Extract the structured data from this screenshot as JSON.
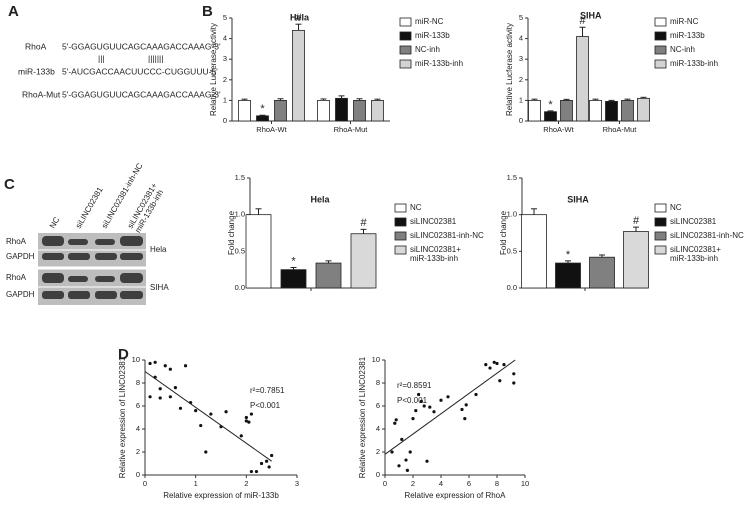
{
  "panels": [
    "A",
    "B",
    "C",
    "D"
  ],
  "sequences": {
    "rows": [
      {
        "label": "RhoA",
        "seq": "5'-GGAGUGUUCAGCAAAGACCAAAG-3'"
      },
      {
        "label": "miR-133b",
        "seq": "5'-AUCGACCAACUUCCC-CUGGUUU-5'"
      },
      {
        "label": "RhoA-Mut",
        "seq": "5'-GGAGUGUUCAGCAAAGACCAAAG-3'"
      }
    ],
    "pairing": [
      "|||",
      "|||||||"
    ]
  },
  "blot": {
    "lanes": [
      "NC",
      "siLINC02381",
      "siLINC02381-inh-NC",
      "siLINC02381+\nmiR-133b-inh"
    ],
    "rows": [
      "RhoA",
      "GAPDH",
      "RhoA",
      "GAPDH"
    ],
    "cell_lines": [
      "Hela",
      "SIHA"
    ]
  },
  "chart_data": [
    {
      "type": "bar",
      "title": "Hela",
      "y_label": "Relative Lucferase activity",
      "categories": [
        "RhoA-Wt",
        "RhoA-Mut"
      ],
      "ylim": [
        0,
        5
      ],
      "yticks": [
        0,
        1,
        2,
        3,
        4,
        5
      ],
      "series": [
        {
          "name": "miR-NC",
          "color": "#ffffff",
          "values": [
            1.0,
            1.0
          ],
          "errors": [
            0.06,
            0.07
          ]
        },
        {
          "name": "miR-133b",
          "color": "#111111",
          "values": [
            0.25,
            1.1
          ],
          "errors": [
            0.03,
            0.12
          ]
        },
        {
          "name": "NC-inh",
          "color": "#808080",
          "values": [
            1.0,
            1.0
          ],
          "errors": [
            0.08,
            0.08
          ]
        },
        {
          "name": "miR-133b-inh",
          "color": "#d3d3d3",
          "values": [
            4.4,
            1.0
          ],
          "errors": [
            0.3,
            0.06
          ]
        }
      ],
      "annotations": [
        {
          "text": "*",
          "series": "miR-133b",
          "category": "RhoA-Wt"
        },
        {
          "text": "#",
          "series": "miR-133b-inh",
          "category": "RhoA-Wt"
        }
      ]
    },
    {
      "type": "bar",
      "title": "SIHA",
      "y_label": "Relative Lucferase activity",
      "categories": [
        "RhoA-Wt",
        "RhoA-Mut"
      ],
      "ylim": [
        0,
        5
      ],
      "yticks": [
        0,
        1,
        2,
        3,
        4,
        5
      ],
      "series": [
        {
          "name": "miR-NC",
          "color": "#ffffff",
          "values": [
            1.0,
            1.0
          ],
          "errors": [
            0.06,
            0.06
          ]
        },
        {
          "name": "miR-133b",
          "color": "#111111",
          "values": [
            0.45,
            0.95
          ],
          "errors": [
            0.04,
            0.05
          ]
        },
        {
          "name": "NC-inh",
          "color": "#808080",
          "values": [
            1.0,
            1.0
          ],
          "errors": [
            0.05,
            0.06
          ]
        },
        {
          "name": "miR-133b-inh",
          "color": "#d3d3d3",
          "values": [
            4.1,
            1.1
          ],
          "errors": [
            0.45,
            0.05
          ]
        }
      ],
      "annotations": [
        {
          "text": "*",
          "series": "miR-133b",
          "category": "RhoA-Wt"
        },
        {
          "text": "#",
          "series": "miR-133b-inh",
          "category": "RhoA-Wt"
        }
      ]
    },
    {
      "type": "bar",
      "title": "Hela",
      "y_label": "Fold change",
      "categories": [
        null
      ],
      "ylim": [
        0,
        1.5
      ],
      "yticks": [
        {
          "value": 0,
          "label": "0.0"
        },
        {
          "value": 0.5,
          "label": "0.5"
        },
        {
          "value": 1,
          "label": "1.0"
        },
        {
          "value": 1.5,
          "label": "1.5"
        }
      ],
      "series": [
        {
          "name": "NC",
          "color": "#ffffff",
          "values": [
            1.0
          ],
          "errors": [
            0.08
          ]
        },
        {
          "name": "siLINC02381",
          "color": "#111111",
          "values": [
            0.25
          ],
          "errors": [
            0.03
          ]
        },
        {
          "name": "siLINC02381-inh-NC",
          "color": "#808080",
          "values": [
            0.34
          ],
          "errors": [
            0.03
          ]
        },
        {
          "name": "siLINC02381+\nmiR-133b-inh",
          "color": "#d9d9d9",
          "values": [
            0.74
          ],
          "errors": [
            0.06
          ]
        }
      ],
      "annotations": [
        {
          "text": "*",
          "series": "siLINC02381",
          "category": null
        },
        {
          "text": "#",
          "series": "siLINC02381+\nmiR-133b-inh",
          "category": null
        }
      ]
    },
    {
      "type": "bar",
      "title": "SIHA",
      "y_label": "Fold change",
      "categories": [
        null
      ],
      "ylim": [
        0,
        1.5
      ],
      "yticks": [
        {
          "value": 0,
          "label": "0.0"
        },
        {
          "value": 0.5,
          "label": "0.5"
        },
        {
          "value": 1,
          "label": "1.0"
        },
        {
          "value": 1.5,
          "label": "1.5"
        }
      ],
      "series": [
        {
          "name": "NC",
          "color": "#ffffff",
          "values": [
            1.0
          ],
          "errors": [
            0.08
          ]
        },
        {
          "name": "siLINC02381",
          "color": "#111111",
          "values": [
            0.34
          ],
          "errors": [
            0.03
          ]
        },
        {
          "name": "siLINC02381-inh-NC",
          "color": "#808080",
          "values": [
            0.42
          ],
          "errors": [
            0.03
          ]
        },
        {
          "name": "siLINC02381+\nmiR-133b-inh",
          "color": "#d9d9d9",
          "values": [
            0.77
          ],
          "errors": [
            0.06
          ]
        }
      ],
      "annotations": [
        {
          "text": "*",
          "series": "siLINC02381",
          "category": null
        },
        {
          "text": "#",
          "series": "siLINC02381+\nmiR-133b-inh",
          "category": null
        }
      ]
    },
    {
      "type": "scatter",
      "x_label": "Relative expression of miR-133b",
      "y_label": "Relative expression of LINC02381",
      "xlim": [
        0,
        3
      ],
      "xticks": [
        0,
        1,
        2,
        3
      ],
      "ylim": [
        0,
        10
      ],
      "yticks": [
        0,
        2,
        4,
        6,
        8,
        10
      ],
      "color": "#111111",
      "x": [
        0.1,
        0.2,
        0.1,
        0.3,
        0.3,
        0.4,
        0.5,
        0.5,
        0.6,
        0.7,
        0.8,
        0.9,
        1.0,
        1.1,
        1.2,
        1.3,
        1.5,
        1.9,
        2.0,
        2.0,
        2.1,
        2.1,
        2.2,
        2.3,
        2.4,
        2.5,
        2.45,
        0.2,
        1.6,
        2.05
      ],
      "values": [
        9.7,
        9.8,
        6.8,
        6.7,
        7.5,
        9.5,
        6.8,
        9.2,
        7.6,
        5.8,
        9.5,
        6.3,
        5.6,
        4.3,
        2.0,
        5.3,
        4.2,
        3.4,
        4.7,
        5.0,
        5.3,
        0.3,
        0.3,
        1.0,
        1.2,
        1.7,
        0.7,
        8.5,
        5.5,
        4.6
      ],
      "fit": {
        "x": [
          0,
          2.5
        ],
        "values": [
          9,
          1.2
        ]
      },
      "annotations": [
        "r²=0.7851",
        "P<0.001"
      ]
    },
    {
      "type": "scatter",
      "x_label": "Relative expression of RhoA",
      "y_label": "Relative expression of LINC02381",
      "xlim": [
        0,
        10
      ],
      "xticks": [
        0,
        2,
        4,
        6,
        8,
        10
      ],
      "ylim": [
        0,
        10
      ],
      "yticks": [
        0,
        2,
        4,
        6,
        8,
        10
      ],
      "color": "#111111",
      "x": [
        0.5,
        0.7,
        0.8,
        1.0,
        1.2,
        1.5,
        1.6,
        1.8,
        2.0,
        2.2,
        2.4,
        2.6,
        2.8,
        3.0,
        3.2,
        3.5,
        4.0,
        4.5,
        5.5,
        5.7,
        5.8,
        6.5,
        7.2,
        7.5,
        8.0,
        8.2,
        8.5,
        9.2,
        9.2,
        7.8
      ],
      "values": [
        2.0,
        4.5,
        4.8,
        0.8,
        3.1,
        1.3,
        0.4,
        2.0,
        4.9,
        5.6,
        7.0,
        6.4,
        6.0,
        1.2,
        5.9,
        5.5,
        6.5,
        6.8,
        5.7,
        4.9,
        6.1,
        7.0,
        9.6,
        9.3,
        9.7,
        8.2,
        9.6,
        8.8,
        8.0,
        9.8
      ],
      "fit": {
        "x": [
          0,
          9.3
        ],
        "values": [
          1.8,
          10
        ]
      },
      "annotations": [
        "r²=0.8591",
        "P<0.001"
      ]
    }
  ]
}
